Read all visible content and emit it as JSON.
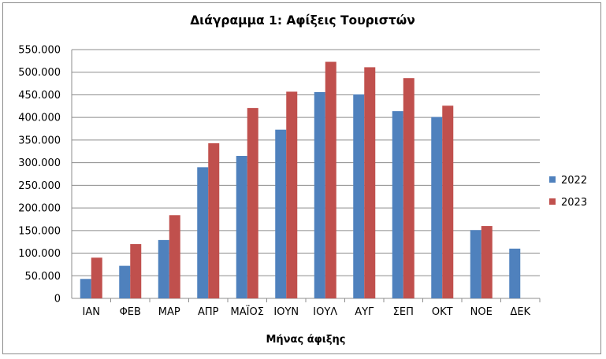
{
  "chart_data": {
    "type": "bar",
    "title": "Διάγραμμα 1: Αφίξεις Τουριστών",
    "xlabel": "Μήνας άφιξης",
    "ylabel": "",
    "ylim": [
      0,
      550000
    ],
    "yticks": [
      0,
      50000,
      100000,
      150000,
      200000,
      250000,
      300000,
      350000,
      400000,
      450000,
      500000,
      550000
    ],
    "ytick_labels": [
      "0",
      "50.000",
      "100.000",
      "150.000",
      "200.000",
      "250.000",
      "300.000",
      "350.000",
      "400.000",
      "450.000",
      "500.000",
      "550.000"
    ],
    "categories": [
      "ΙΑΝ",
      "ΦΕΒ",
      "ΜΑΡ",
      "ΑΠΡ",
      "ΜΑΪΟΣ",
      "ΙΟΥΝ",
      "ΙΟΥΛ",
      "ΑΥΓ",
      "ΣΕΠ",
      "ΟΚΤ",
      "ΝΟΕ",
      "ΔΕΚ"
    ],
    "grid": true,
    "legend_position": "right",
    "series": [
      {
        "name": "2022",
        "color": "#4f81bd",
        "values": [
          43000,
          72000,
          129000,
          290000,
          315000,
          373000,
          456000,
          451000,
          414000,
          401000,
          151000,
          110000
        ]
      },
      {
        "name": "2023",
        "color": "#c0504d",
        "values": [
          90000,
          120000,
          184000,
          343000,
          421000,
          457000,
          523000,
          511000,
          487000,
          426000,
          160000,
          null
        ]
      }
    ]
  }
}
